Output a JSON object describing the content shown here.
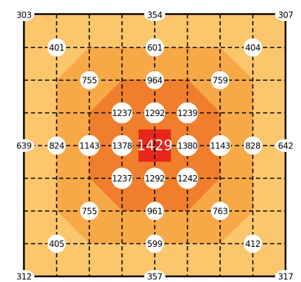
{
  "points": [
    303,
    354,
    307,
    401,
    601,
    404,
    755,
    964,
    759,
    1237,
    1292,
    1239,
    639,
    824,
    1143,
    1378,
    1429,
    1380,
    1143,
    828,
    642,
    1237,
    1292,
    1242,
    755,
    961,
    763,
    405,
    599,
    412,
    312,
    357,
    317
  ]
}
